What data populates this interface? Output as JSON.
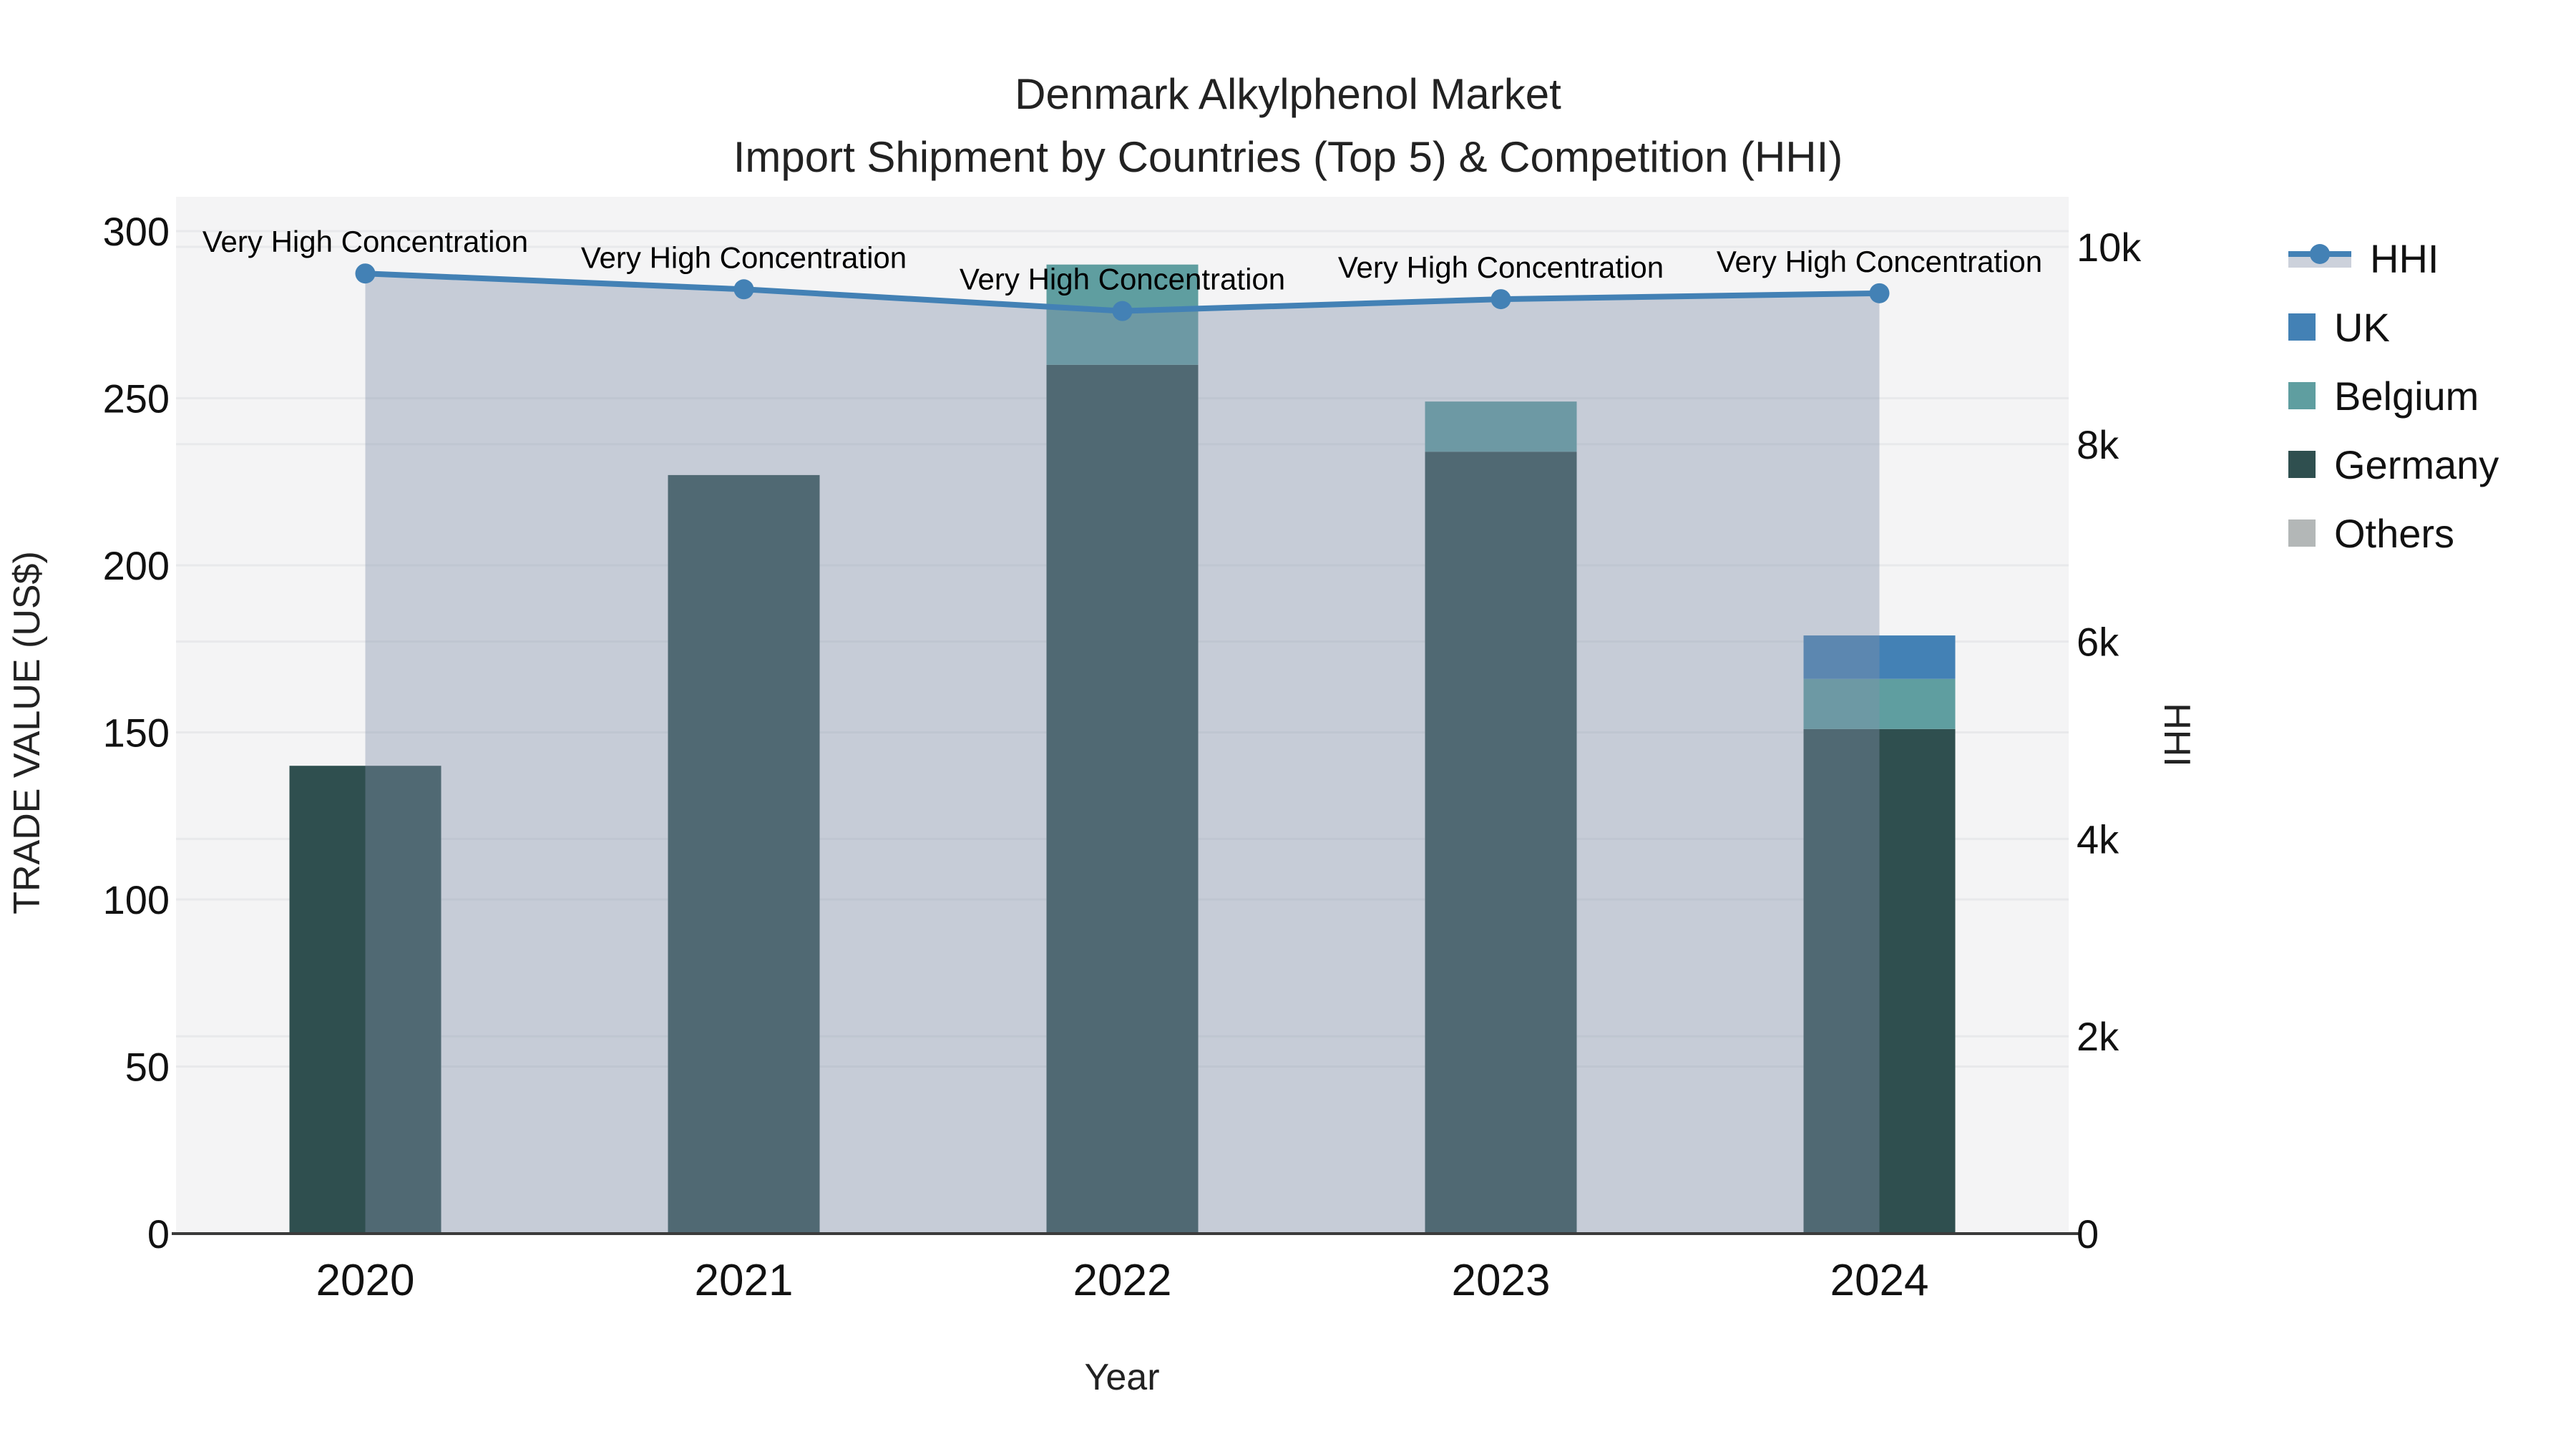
{
  "title": {
    "line1": "Denmark Alkylphenol Market",
    "line2": "Import Shipment by Countries (Top 5) & Competition (HHI)"
  },
  "axes": {
    "left": {
      "label": "TRADE VALUE (US$)",
      "tick_values": [
        0,
        50,
        100,
        150,
        200,
        250,
        300
      ],
      "tick_labels": [
        "0",
        "50",
        "100",
        "150",
        "200",
        "250",
        "300"
      ],
      "range": [
        0,
        300
      ]
    },
    "right": {
      "label": "HHI",
      "tick_values": [
        0,
        2000,
        4000,
        6000,
        8000,
        10000
      ],
      "tick_labels": [
        "0",
        "2k",
        "4k",
        "6k",
        "8k",
        "10k"
      ],
      "range": [
        0,
        10000
      ]
    },
    "x": {
      "label": "Year",
      "tick_labels": [
        "2020",
        "2021",
        "2022",
        "2023",
        "2024"
      ]
    }
  },
  "legend": {
    "items": [
      {
        "label": "HHI",
        "type": "line",
        "color": "#4381b5"
      },
      {
        "label": "UK",
        "type": "square",
        "color": "#4381b5"
      },
      {
        "label": "Belgium",
        "type": "square",
        "color": "#5f9ea0"
      },
      {
        "label": "Germany",
        "type": "square",
        "color": "#2f4f4f"
      },
      {
        "label": "Others",
        "type": "square",
        "color": "#b3b7b7"
      }
    ]
  },
  "chart_data": {
    "type": "combo-stacked-bar-line",
    "categories": [
      "2020",
      "2021",
      "2022",
      "2023",
      "2024"
    ],
    "bar_series": [
      {
        "name": "Germany",
        "color": "#2f4f4f",
        "values": [
          140,
          227,
          260,
          234,
          151
        ]
      },
      {
        "name": "Belgium",
        "color": "#5f9ea0",
        "values": [
          0,
          0,
          30,
          15,
          15
        ]
      },
      {
        "name": "UK",
        "color": "#4381b5",
        "values": [
          0,
          0,
          0,
          0,
          13
        ]
      },
      {
        "name": "Others",
        "color": "#b3b7b7",
        "values": [
          0,
          0,
          0,
          0,
          0
        ]
      }
    ],
    "bar_totals": [
      140,
      227,
      290,
      249,
      179
    ],
    "line_series": {
      "name": "HHI",
      "axis": "right",
      "color": "#4381b5",
      "area_fill": "rgba(130,145,170,0.4)",
      "values": [
        9730,
        9570,
        9350,
        9470,
        9530
      ]
    },
    "annotations": {
      "text": "Very High Concentration",
      "per_point": [
        "Very High Concentration",
        "Very High Concentration",
        "Very High Concentration",
        "Very High Concentration",
        "Very High Concentration"
      ]
    },
    "title": "Denmark Alkylphenol Market — Import Shipment by Countries (Top 5) & Competition (HHI)",
    "xlabel": "Year",
    "ylabel_left": "TRADE VALUE (US$)",
    "ylabel_right": "HHI",
    "ylim_left": [
      0,
      300
    ],
    "ylim_right": [
      0,
      10000
    ],
    "grid": true,
    "legend_position": "right-top"
  },
  "colors": {
    "plot_background": "#f4f4f5",
    "page_background": "#ffffff",
    "gridline": "#e8e9eb",
    "axis_line": "#3b3b3b",
    "tick_text": "#111111"
  }
}
